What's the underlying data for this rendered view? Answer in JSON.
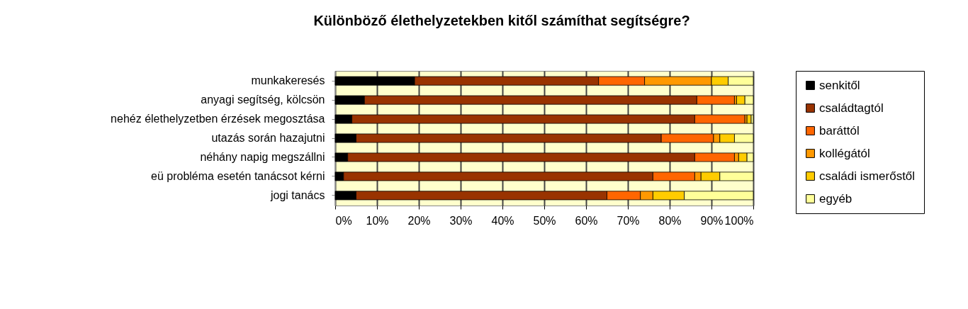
{
  "chart_data": {
    "type": "bar",
    "orientation": "horizontal",
    "stacked": true,
    "title": "Különböző élethelyzetekben kitől számíthat segítségre?",
    "categories": [
      "munkakeresés",
      "anyagi segítség, kölcsön",
      "nehéz élethelyzetben érzések megosztása",
      "utazás során hazajutni",
      "néhány napig megszállni",
      "eü probléma esetén tanácsot kérni",
      "jogi tanács"
    ],
    "series": [
      {
        "name": "senkitől",
        "color": "#000000",
        "values": [
          19,
          7,
          4,
          5,
          3,
          2,
          5
        ]
      },
      {
        "name": "családtagtól",
        "color": "#993300",
        "values": [
          44,
          79.5,
          82,
          73,
          83,
          74,
          60
        ]
      },
      {
        "name": "baráttól",
        "color": "#ff6600",
        "values": [
          11,
          9,
          12,
          12.5,
          9.5,
          10,
          8
        ]
      },
      {
        "name": "kollégától",
        "color": "#ff9900",
        "values": [
          16,
          0.5,
          0.5,
          1.5,
          1,
          1.5,
          3
        ]
      },
      {
        "name": "családi ismerőstől",
        "color": "#ffcc00",
        "values": [
          4,
          2,
          1,
          3.5,
          2,
          4.5,
          7.5
        ]
      },
      {
        "name": "egyéb",
        "color": "#ffff99",
        "values": [
          6,
          2,
          0.5,
          4.5,
          1.5,
          8,
          16.5
        ]
      }
    ],
    "xlim": [
      0,
      100
    ],
    "xticks": [
      {
        "value": 0,
        "label": "0%"
      },
      {
        "value": 10,
        "label": "10%"
      },
      {
        "value": 20,
        "label": "20%"
      },
      {
        "value": 30,
        "label": "30%"
      },
      {
        "value": 40,
        "label": "40%"
      },
      {
        "value": 50,
        "label": "50%"
      },
      {
        "value": 60,
        "label": "60%"
      },
      {
        "value": 70,
        "label": "70%"
      },
      {
        "value": 80,
        "label": "80%"
      },
      {
        "value": 90,
        "label": "90%"
      },
      {
        "value": 100,
        "label": "100%"
      }
    ],
    "grid": "x",
    "legend": "right"
  }
}
